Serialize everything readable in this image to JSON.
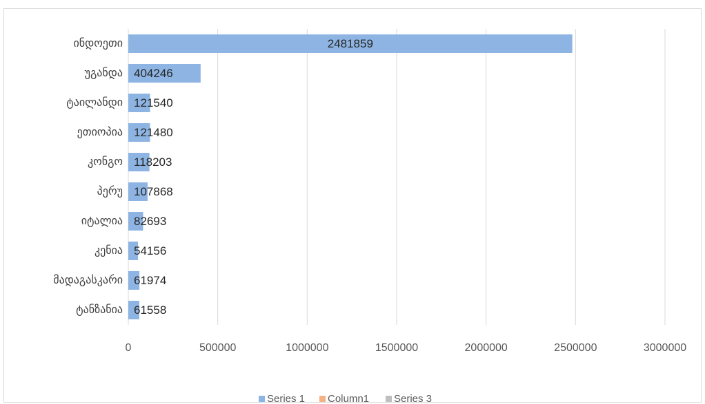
{
  "chart_data": {
    "type": "bar",
    "orientation": "horizontal",
    "categories": [
      "ინდოეთი",
      "უგანდა",
      "ტაილანდი",
      "ეთიოპია",
      "კონგო",
      "პერუ",
      "იტალია",
      "კენია",
      "მადაგასკარი",
      "ტანზანია"
    ],
    "series": [
      {
        "name": "Series 1",
        "color": "#8db4e2",
        "values": [
          2481859,
          404246,
          121540,
          121480,
          118203,
          107868,
          82693,
          54156,
          61974,
          61558
        ]
      },
      {
        "name": "Column1",
        "color": "#f4b183",
        "values": [
          null,
          null,
          null,
          null,
          null,
          null,
          null,
          null,
          null,
          null
        ]
      },
      {
        "name": "Series 3",
        "color": "#bfbfbf",
        "values": [
          null,
          null,
          null,
          null,
          null,
          null,
          null,
          null,
          null,
          null
        ]
      }
    ],
    "xlim": [
      0,
      3000000
    ],
    "xticks": [
      0,
      500000,
      1000000,
      1500000,
      2000000,
      2500000,
      3000000
    ],
    "grid": true,
    "legend": "bottom"
  }
}
